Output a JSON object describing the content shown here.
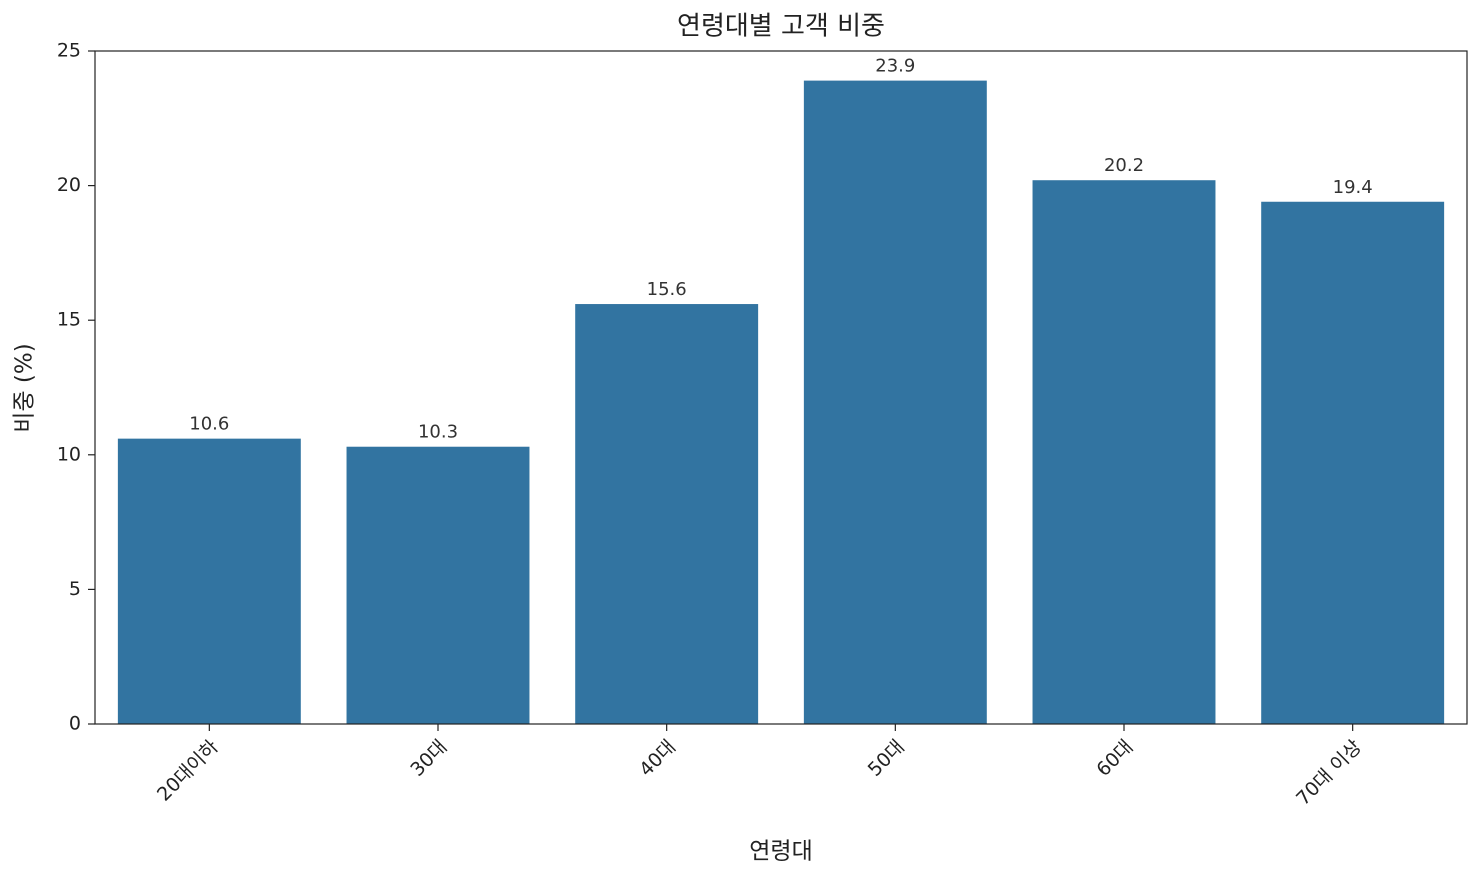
{
  "chart_data": {
    "type": "bar",
    "title": "연령대별 고객 비중",
    "x_label": "연령대",
    "y_label": "비중 (%)",
    "categories": [
      "20대이하",
      "30대",
      "40대",
      "50대",
      "60대",
      "70대 이상"
    ],
    "values": [
      10.6,
      10.3,
      15.6,
      23.9,
      20.2,
      19.4
    ],
    "color": "#3274a1",
    "ylim": [
      0,
      25
    ],
    "yticks": [
      0,
      5,
      10,
      15,
      20,
      25
    ],
    "grid": false
  }
}
